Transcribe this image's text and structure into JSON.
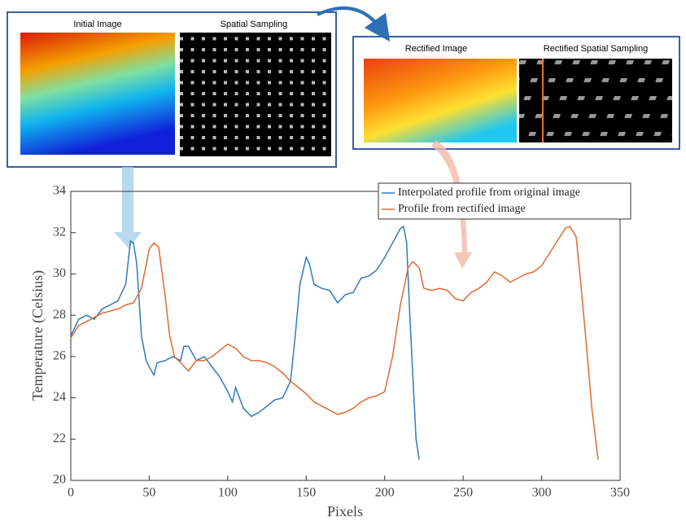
{
  "insets": [
    {
      "title": "Initial Image"
    },
    {
      "title": "Spatial Sampling"
    },
    {
      "title": "Rectified Image"
    },
    {
      "title": "Rectified Spatial Sampling"
    }
  ],
  "chart_data": {
    "type": "line",
    "xlabel": "Pixels",
    "ylabel": "Temperature (Celsius)",
    "xlim": [
      0,
      350
    ],
    "ylim": [
      20,
      34
    ],
    "xticks": [
      0,
      50,
      100,
      150,
      200,
      250,
      300,
      350
    ],
    "yticks": [
      20,
      22,
      24,
      26,
      28,
      30,
      32,
      34
    ],
    "legend": "upper right",
    "series": [
      {
        "name": "Interpolated profile from original image",
        "color": "#2e7bbf",
        "x": [
          0,
          5,
          10,
          15,
          20,
          25,
          30,
          35,
          38,
          40,
          42,
          45,
          48,
          50,
          53,
          55,
          60,
          65,
          70,
          72,
          75,
          80,
          85,
          90,
          95,
          100,
          103,
          105,
          110,
          115,
          120,
          125,
          130,
          135,
          140,
          143,
          146,
          150,
          152,
          155,
          160,
          165,
          170,
          175,
          180,
          185,
          190,
          195,
          200,
          205,
          210,
          212,
          214,
          216,
          218,
          220,
          222
        ],
        "values": [
          27,
          27.8,
          28,
          27.8,
          28.3,
          28.5,
          28.7,
          29.5,
          31.6,
          31.5,
          30.5,
          27,
          25.8,
          25.5,
          25.1,
          25.7,
          25.8,
          26,
          25.8,
          26.5,
          26.5,
          25.8,
          26,
          25.5,
          25,
          24.3,
          23.8,
          24.5,
          23.5,
          23.1,
          23.3,
          23.6,
          23.9,
          24,
          24.8,
          27,
          29.5,
          30.8,
          30.5,
          29.5,
          29.3,
          29.2,
          28.6,
          29,
          29.1,
          29.8,
          29.9,
          30.2,
          30.8,
          31.5,
          32.2,
          32.3,
          31.5,
          28,
          25,
          22,
          21
        ]
      },
      {
        "name": "Profile from rectified image",
        "color": "#e06a2f",
        "x": [
          0,
          5,
          10,
          15,
          20,
          25,
          30,
          35,
          40,
          45,
          50,
          53,
          56,
          60,
          63,
          66,
          70,
          75,
          80,
          85,
          90,
          95,
          100,
          105,
          110,
          115,
          120,
          125,
          130,
          135,
          140,
          145,
          150,
          155,
          160,
          165,
          170,
          175,
          180,
          185,
          190,
          195,
          200,
          205,
          210,
          215,
          218,
          222,
          225,
          230,
          235,
          240,
          245,
          250,
          255,
          260,
          265,
          270,
          275,
          280,
          285,
          290,
          295,
          300,
          305,
          310,
          315,
          318,
          322,
          325,
          328,
          332,
          336
        ],
        "values": [
          26.9,
          27.5,
          27.7,
          27.9,
          28.1,
          28.2,
          28.3,
          28.5,
          28.6,
          29.3,
          31.2,
          31.5,
          31.3,
          29,
          27,
          26,
          25.7,
          25.3,
          25.8,
          25.8,
          26,
          26.3,
          26.6,
          26.4,
          26,
          25.8,
          25.8,
          25.7,
          25.5,
          25.2,
          24.8,
          24.5,
          24.2,
          23.8,
          23.6,
          23.4,
          23.2,
          23.3,
          23.5,
          23.8,
          24,
          24.1,
          24.3,
          26,
          28.5,
          30.3,
          30.6,
          30.3,
          29.3,
          29.2,
          29.3,
          29.2,
          28.8,
          28.7,
          29.1,
          29.3,
          29.6,
          30.1,
          29.9,
          29.6,
          29.8,
          30,
          30.1,
          30.4,
          31,
          31.6,
          32.2,
          32.3,
          31.8,
          29.5,
          27,
          23.5,
          21
        ]
      }
    ]
  }
}
